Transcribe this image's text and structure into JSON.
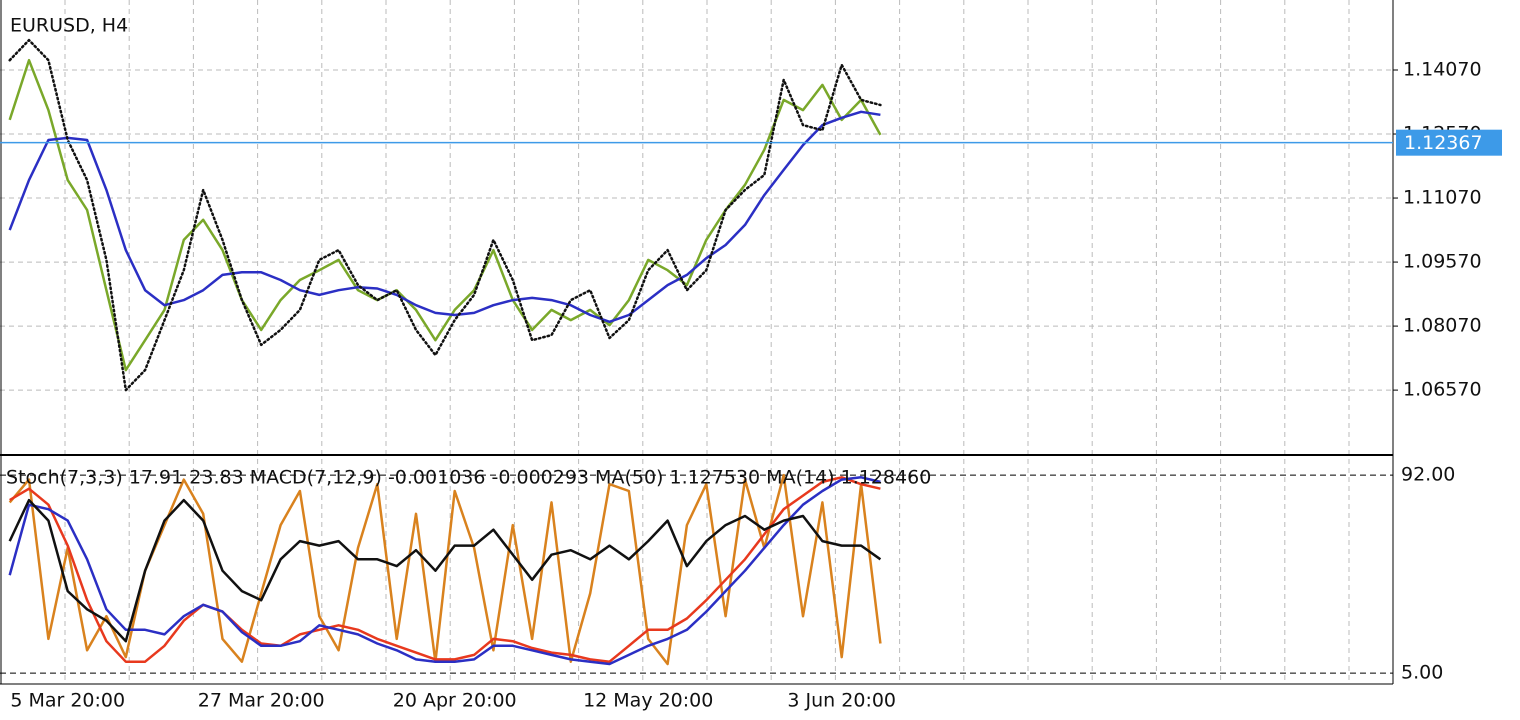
{
  "chart_data": [
    {
      "type": "line",
      "title": "EURUSD, H4",
      "categories": [
        null,
        null,
        null,
        "5 Mar 20:00",
        null,
        null,
        null,
        null,
        null,
        null,
        null,
        null,
        null,
        "27 Mar 20:00",
        null,
        null,
        null,
        null,
        null,
        null,
        null,
        null,
        null,
        "20 Apr 20:00",
        null,
        null,
        null,
        null,
        null,
        null,
        null,
        null,
        null,
        "12 May 20:00",
        null,
        null,
        null,
        null,
        null,
        null,
        null,
        null,
        null,
        "3 Jun 20:00",
        null,
        null
      ],
      "series": [
        {
          "color": "#7aa82a",
          "line_style": "solid",
          "values": [
            1.129,
            1.143,
            1.1313,
            1.1149,
            1.1079,
            1.0891,
            1.0704,
            1.0774,
            1.0845,
            1.1009,
            1.1056,
            1.0985,
            1.0868,
            1.0798,
            1.0868,
            1.0915,
            1.0938,
            1.0962,
            1.0891,
            1.0868,
            1.0891,
            1.0845,
            1.0774,
            1.0845,
            1.0891,
            1.0985,
            1.0868,
            1.0798,
            1.0845,
            1.0821,
            1.0845,
            1.0809,
            1.0868,
            1.0962,
            1.0938,
            1.0903,
            1.1009,
            1.1079,
            1.1138,
            1.122,
            1.1337,
            1.1313,
            1.1372,
            1.129,
            1.1337,
            1.1255
          ]
        },
        {
          "color": "#2b2fc4",
          "line_style": "solid",
          "values": [
            1.1032,
            1.1149,
            1.1243,
            1.1248,
            1.1243,
            1.1126,
            1.0985,
            1.0891,
            1.0856,
            1.0868,
            1.0891,
            1.0927,
            1.0933,
            1.0933,
            1.0915,
            1.0891,
            1.088,
            1.0891,
            1.0898,
            1.0895,
            1.088,
            1.0856,
            1.0838,
            1.0833,
            1.0838,
            1.0856,
            1.0868,
            1.0873,
            1.0868,
            1.0856,
            1.0833,
            1.0817,
            1.0833,
            1.0868,
            1.0903,
            1.0927,
            1.0966,
            1.0997,
            1.1044,
            1.1114,
            1.1173,
            1.1231,
            1.1278,
            1.1295,
            1.1309,
            1.1302
          ]
        },
        {
          "color": "#111111",
          "line_style": "dotted",
          "values": [
            1.143,
            1.1477,
            1.143,
            1.1243,
            1.1149,
            1.0962,
            1.0657,
            1.0704,
            1.0821,
            1.0938,
            1.1126,
            1.1009,
            1.0868,
            1.0763,
            1.0798,
            1.0845,
            1.0962,
            1.0985,
            1.0903,
            1.0868,
            1.0891,
            1.0798,
            1.0739,
            1.0821,
            1.088,
            1.1009,
            1.0915,
            1.0774,
            1.0786,
            1.0868,
            1.0891,
            1.0779,
            1.0821,
            1.0938,
            1.0985,
            1.0891,
            1.0938,
            1.1079,
            1.1126,
            1.1161,
            1.1384,
            1.1278,
            1.1266,
            1.1419,
            1.1337,
            1.1325
          ]
        }
      ],
      "ylim": [
        1.0512,
        1.1571
      ],
      "yticks": [
        {
          "value": 1.1407,
          "label": "1.14070"
        },
        {
          "value": 1.1257,
          "label": "1.12570"
        },
        {
          "value": 1.1107,
          "label": "1.11070"
        },
        {
          "value": 1.0957,
          "label": "1.09570"
        },
        {
          "value": 1.0807,
          "label": "1.08070"
        },
        {
          "value": 1.0657,
          "label": "1.06570"
        }
      ],
      "grid": true,
      "current_price": 1.12367,
      "current_price_color": "#3d9ae8"
    },
    {
      "type": "line",
      "title": "Stoch(7,3,3) 17.91 23.83 MACD(7,12,9) -0.001036 -0.000293 MA(50) 1.127530 MA(14) 1.128460",
      "series": [
        {
          "color": "#d9821e",
          "line_style": "solid",
          "values": [
            80,
            90,
            20,
            60,
            15,
            30,
            12,
            50,
            70,
            90,
            75,
            20,
            10,
            40,
            70,
            85,
            30,
            15,
            60,
            88,
            20,
            75,
            10,
            85,
            60,
            15,
            70,
            20,
            80,
            10,
            40,
            88,
            85,
            20,
            9,
            70,
            88,
            30,
            90,
            60,
            92,
            30,
            80,
            12,
            88,
            18
          ]
        },
        {
          "color": "#e8391e",
          "line_style": "solid",
          "values": [
            81,
            86,
            79,
            61,
            37,
            19,
            10,
            10,
            17,
            28,
            35,
            32,
            24,
            18,
            17,
            22,
            24,
            26,
            24,
            20,
            17,
            14,
            11,
            11,
            13,
            20,
            19,
            16,
            14,
            13,
            11,
            10,
            17,
            24,
            24,
            29,
            37,
            46,
            55,
            66,
            77,
            83,
            89,
            91,
            88,
            86
          ]
        },
        {
          "color": "#2b2fc4",
          "line_style": "solid",
          "values": [
            48,
            79,
            77,
            72,
            55,
            33,
            24,
            24,
            22,
            30,
            35,
            32,
            23,
            17,
            17,
            19,
            26,
            24,
            22,
            18,
            15,
            11,
            10,
            10,
            11,
            17,
            17,
            15,
            13,
            11,
            10,
            9,
            13,
            17,
            20,
            24,
            32,
            41,
            50,
            60,
            70,
            79,
            85,
            90,
            91,
            89
          ]
        },
        {
          "color": "#111111",
          "line_style": "solid",
          "values": [
            63,
            81,
            72,
            41,
            33,
            28,
            19,
            50,
            72,
            81,
            72,
            50,
            41,
            37,
            55,
            63,
            61,
            63,
            55,
            55,
            52,
            59,
            50,
            61,
            61,
            68,
            57,
            46,
            57,
            59,
            55,
            61,
            55,
            63,
            72,
            52,
            63,
            70,
            74,
            68,
            72,
            74,
            63,
            61,
            61,
            55
          ]
        }
      ],
      "ylim": [
        0.2,
        99.5
      ],
      "yticks": [
        {
          "value": 92,
          "label": "92.00"
        },
        {
          "value": 5,
          "label": "5.00"
        }
      ]
    }
  ]
}
